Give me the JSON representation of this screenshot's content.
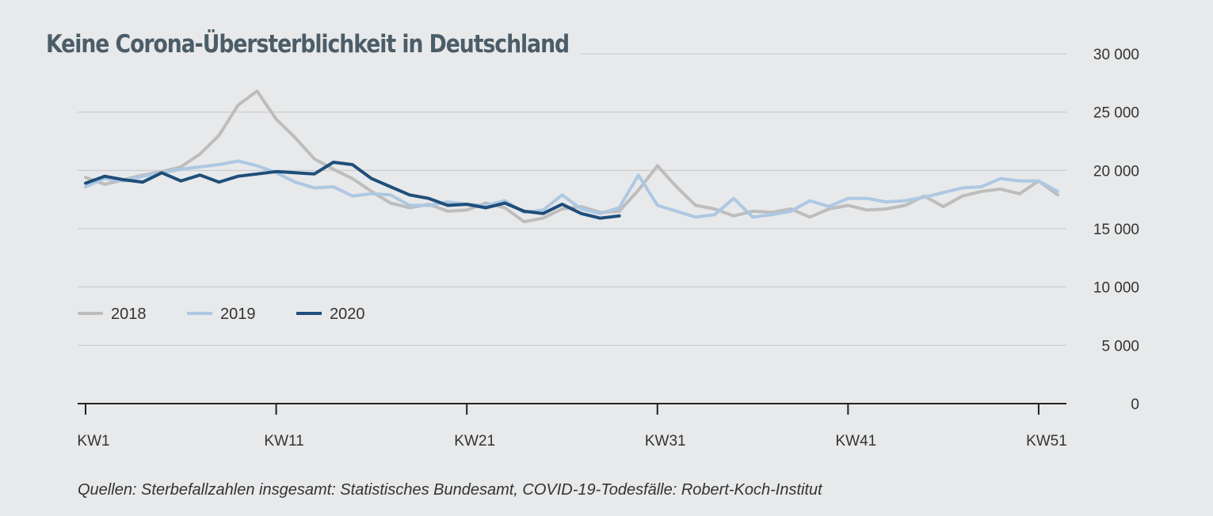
{
  "title": "Keine Corona-Übersterblichkeit in Deutschland",
  "source": "Quellen: Sterbefallzahlen insgesamt: Statistisches Bundesamt, COVID-19-Todesfälle: Robert-Koch-Institut",
  "colors": {
    "background": "#e8e9ea",
    "grid": "#c4c7ca",
    "axis": "#222222"
  },
  "chart_data": {
    "type": "line",
    "title": "Keine Corona-Übersterblichkeit in Deutschland",
    "xlabel": "",
    "ylabel": "",
    "xlim": [
      1,
      52
    ],
    "ylim": [
      0,
      30000
    ],
    "y_ticks": [
      0,
      5000,
      10000,
      15000,
      20000,
      25000,
      30000
    ],
    "y_tick_labels": [
      "0",
      "5 000",
      "10 000",
      "15 000",
      "20 000",
      "25 000",
      "30 000"
    ],
    "x_ticks": [
      1,
      11,
      21,
      31,
      41,
      51
    ],
    "x_tick_labels": [
      "KW1",
      "KW11",
      "KW21",
      "KW31",
      "KW41",
      "KW51"
    ],
    "grid": true,
    "legend_position": "left",
    "series": [
      {
        "name": "2018",
        "color": "#bdbdbd",
        "x": [
          1,
          2,
          3,
          4,
          5,
          6,
          7,
          8,
          9,
          10,
          11,
          12,
          13,
          14,
          15,
          16,
          17,
          18,
          19,
          20,
          21,
          22,
          23,
          24,
          25,
          26,
          27,
          28,
          29,
          30,
          31,
          32,
          33,
          34,
          35,
          36,
          37,
          38,
          39,
          40,
          41,
          42,
          43,
          44,
          45,
          46,
          47,
          48,
          49,
          50,
          51,
          52
        ],
        "values": [
          19400,
          18800,
          19200,
          19600,
          19900,
          20300,
          21400,
          23000,
          25600,
          26800,
          24400,
          22800,
          21000,
          20100,
          19300,
          18200,
          17200,
          16800,
          17100,
          16500,
          16600,
          17200,
          16800,
          15600,
          15900,
          16700,
          16900,
          16400,
          16500,
          18300,
          20400,
          18600,
          17000,
          16700,
          16100,
          16500,
          16400,
          16700,
          16000,
          16700,
          17000,
          16600,
          16700,
          17000,
          17800,
          16900,
          17800,
          18200,
          18400,
          18000,
          19100,
          17900
        ]
      },
      {
        "name": "2019",
        "color": "#adc8e3",
        "x": [
          1,
          2,
          3,
          4,
          5,
          6,
          7,
          8,
          9,
          10,
          11,
          12,
          13,
          14,
          15,
          16,
          17,
          18,
          19,
          20,
          21,
          22,
          23,
          24,
          25,
          26,
          27,
          28,
          29,
          30,
          31,
          32,
          33,
          34,
          35,
          36,
          37,
          38,
          39,
          40,
          41,
          42,
          43,
          44,
          45,
          46,
          47,
          48,
          49,
          50,
          51,
          52
        ],
        "values": [
          18600,
          19300,
          19100,
          19500,
          19800,
          20100,
          20300,
          20500,
          20800,
          20400,
          19800,
          19000,
          18500,
          18600,
          17800,
          18000,
          17900,
          17000,
          17000,
          17300,
          17100,
          17000,
          17400,
          16400,
          16600,
          17900,
          16700,
          16300,
          16800,
          19600,
          17000,
          16500,
          16000,
          16200,
          17600,
          16000,
          16200,
          16500,
          17400,
          16900,
          17600,
          17600,
          17300,
          17400,
          17700,
          18100,
          18500,
          18600,
          19300,
          19100,
          19100,
          18200
        ]
      },
      {
        "name": "2020",
        "color": "#1f4e7a",
        "x": [
          1,
          2,
          3,
          4,
          5,
          6,
          7,
          8,
          9,
          10,
          11,
          12,
          13,
          14,
          15,
          16,
          17,
          18,
          19,
          20,
          21,
          22,
          23,
          24,
          25,
          26,
          27,
          28,
          29
        ],
        "values": [
          18900,
          19500,
          19200,
          19000,
          19800,
          19100,
          19600,
          19000,
          19500,
          19700,
          19900,
          19800,
          19700,
          20700,
          20500,
          19300,
          18600,
          17900,
          17600,
          17000,
          17100,
          16800,
          17200,
          16500,
          16300,
          17100,
          16300,
          15900,
          16100
        ]
      }
    ]
  }
}
